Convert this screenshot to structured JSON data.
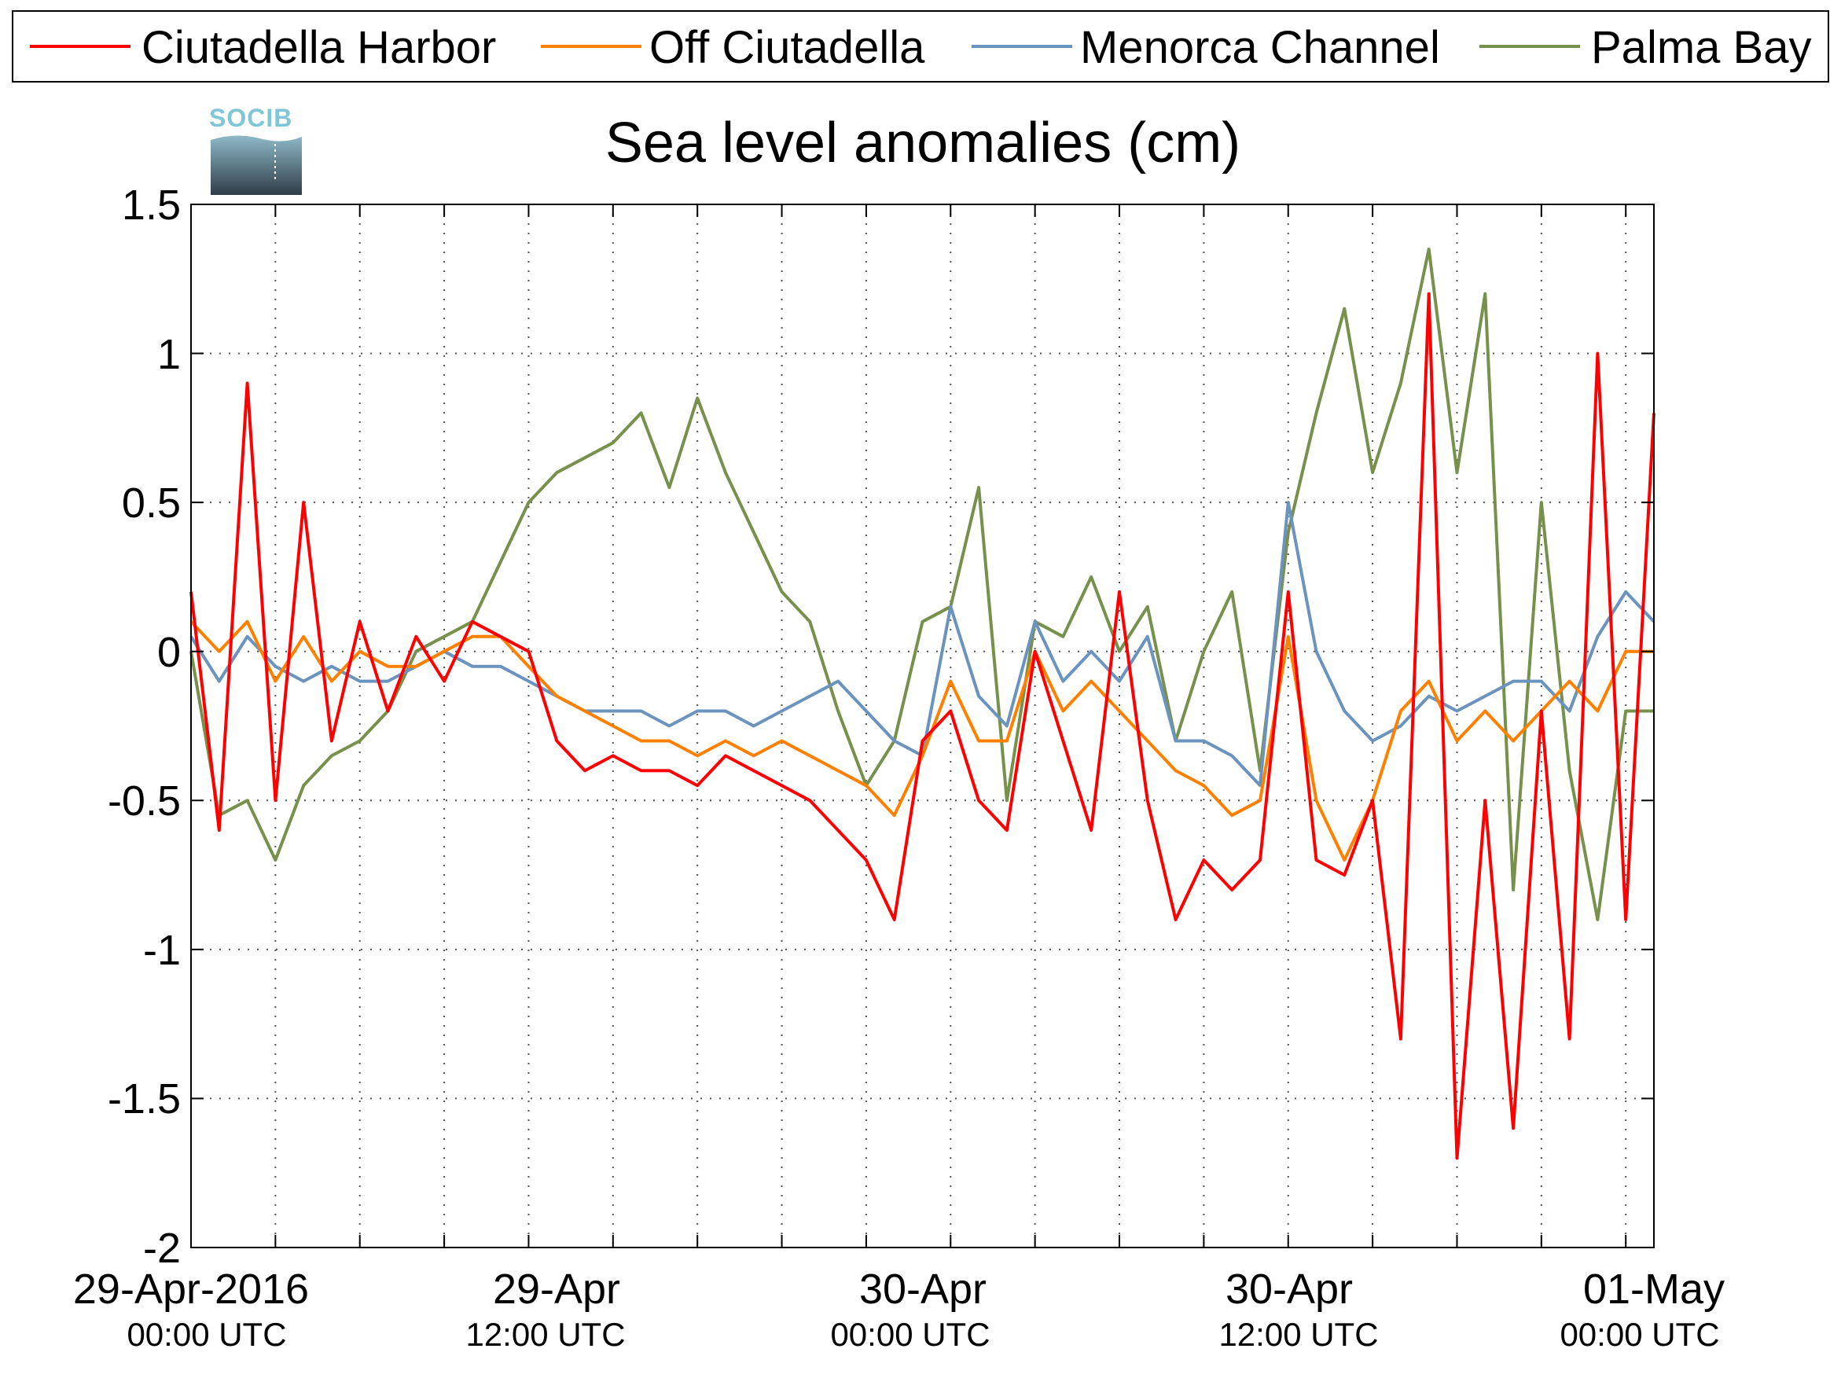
{
  "logo": {
    "text": "SOCIB"
  },
  "legend": {
    "entries": [
      "Ciutadella Harbor",
      "Off Ciutadella",
      "Menorca Channel",
      "Palma Bay"
    ]
  },
  "colors": {
    "Ciutadella Harbor": "#ff0000",
    "Off Ciutadella": "#ff8000",
    "Menorca Channel": "#6a93bd",
    "Palma Bay": "#77904b",
    "grid": "#555555",
    "axis": "#000000"
  },
  "chart_data": {
    "type": "line",
    "title": "Sea level anomalies (cm)",
    "xlabel": "",
    "ylabel": "",
    "xlim": [
      "2016-04-28T21:00",
      "2016-05-01T01:00"
    ],
    "ylim": [
      -2,
      1.5
    ],
    "grid": true,
    "legend_position": "top",
    "y_ticks": [
      "-2",
      "-1.5",
      "-1",
      "-0.5",
      "0",
      "0.5",
      "1",
      "1.5"
    ],
    "x_ticks": [
      {
        "date": "29-Apr-2016",
        "time": "00:00 UTC"
      },
      {
        "date": "29-Apr",
        "time": "12:00 UTC"
      },
      {
        "date": "30-Apr",
        "time": "00:00 UTC"
      },
      {
        "date": "30-Apr",
        "time": "12:00 UTC"
      },
      {
        "date": "01-May",
        "time": "00:00 UTC"
      }
    ],
    "series": [
      {
        "name": "Palma Bay",
        "x": [
          "2016-04-28T21:00",
          "2016-04-28T22:00",
          "2016-04-28T23:00",
          "2016-04-29T00:00",
          "2016-04-29T01:00",
          "2016-04-29T02:00",
          "2016-04-29T03:00",
          "2016-04-29T04:00",
          "2016-04-29T05:00",
          "2016-04-29T06:00",
          "2016-04-29T07:00",
          "2016-04-29T08:00",
          "2016-04-29T09:00",
          "2016-04-29T10:00",
          "2016-04-29T11:00",
          "2016-04-29T12:00",
          "2016-04-29T13:00",
          "2016-04-29T14:00",
          "2016-04-29T15:00",
          "2016-04-29T16:00",
          "2016-04-29T17:00",
          "2016-04-29T18:00",
          "2016-04-29T19:00",
          "2016-04-29T20:00",
          "2016-04-29T21:00",
          "2016-04-29T22:00",
          "2016-04-29T23:00",
          "2016-04-30T00:00",
          "2016-04-30T01:00",
          "2016-04-30T02:00",
          "2016-04-30T03:00",
          "2016-04-30T04:00",
          "2016-04-30T05:00",
          "2016-04-30T06:00",
          "2016-04-30T07:00",
          "2016-04-30T08:00",
          "2016-04-30T09:00",
          "2016-04-30T10:00",
          "2016-04-30T11:00",
          "2016-04-30T12:00",
          "2016-04-30T13:00",
          "2016-04-30T14:00",
          "2016-04-30T15:00",
          "2016-04-30T16:00",
          "2016-04-30T17:00",
          "2016-04-30T18:00",
          "2016-04-30T19:00",
          "2016-04-30T20:00",
          "2016-04-30T21:00",
          "2016-04-30T22:00",
          "2016-04-30T23:00",
          "2016-05-01T00:00",
          "2016-05-01T01:00"
        ],
        "values": [
          0.0,
          -0.55,
          -0.5,
          -0.7,
          -0.45,
          -0.35,
          -0.3,
          -0.2,
          0.0,
          0.05,
          0.1,
          0.3,
          0.5,
          0.6,
          0.65,
          0.7,
          0.8,
          0.55,
          0.85,
          0.6,
          0.4,
          0.2,
          0.1,
          -0.2,
          -0.45,
          -0.3,
          0.1,
          0.15,
          0.55,
          -0.5,
          0.1,
          0.05,
          0.25,
          0.0,
          0.15,
          -0.3,
          0.0,
          0.2,
          -0.4,
          0.4,
          0.8,
          1.15,
          0.6,
          0.9,
          1.35,
          0.6,
          1.2,
          -0.8,
          0.5,
          -0.4,
          -0.9,
          -0.2,
          -0.2
        ]
      },
      {
        "name": "Menorca Channel",
        "x": [
          "2016-04-28T21:00",
          "2016-04-28T22:00",
          "2016-04-28T23:00",
          "2016-04-29T00:00",
          "2016-04-29T01:00",
          "2016-04-29T02:00",
          "2016-04-29T03:00",
          "2016-04-29T04:00",
          "2016-04-29T05:00",
          "2016-04-29T06:00",
          "2016-04-29T07:00",
          "2016-04-29T08:00",
          "2016-04-29T09:00",
          "2016-04-29T10:00",
          "2016-04-29T11:00",
          "2016-04-29T12:00",
          "2016-04-29T13:00",
          "2016-04-29T14:00",
          "2016-04-29T15:00",
          "2016-04-29T16:00",
          "2016-04-29T17:00",
          "2016-04-29T18:00",
          "2016-04-29T19:00",
          "2016-04-29T20:00",
          "2016-04-29T21:00",
          "2016-04-29T22:00",
          "2016-04-29T23:00",
          "2016-04-30T00:00",
          "2016-04-30T01:00",
          "2016-04-30T02:00",
          "2016-04-30T03:00",
          "2016-04-30T04:00",
          "2016-04-30T05:00",
          "2016-04-30T06:00",
          "2016-04-30T07:00",
          "2016-04-30T08:00",
          "2016-04-30T09:00",
          "2016-04-30T10:00",
          "2016-04-30T11:00",
          "2016-04-30T12:00",
          "2016-04-30T13:00",
          "2016-04-30T14:00",
          "2016-04-30T15:00",
          "2016-04-30T16:00",
          "2016-04-30T17:00",
          "2016-04-30T18:00",
          "2016-04-30T19:00",
          "2016-04-30T20:00",
          "2016-04-30T21:00",
          "2016-04-30T22:00",
          "2016-04-30T23:00",
          "2016-05-01T00:00",
          "2016-05-01T01:00"
        ],
        "values": [
          0.05,
          -0.1,
          0.05,
          -0.05,
          -0.1,
          -0.05,
          -0.1,
          -0.1,
          -0.05,
          0.0,
          -0.05,
          -0.05,
          -0.1,
          -0.15,
          -0.2,
          -0.2,
          -0.2,
          -0.25,
          -0.2,
          -0.2,
          -0.25,
          -0.2,
          -0.15,
          -0.1,
          -0.2,
          -0.3,
          -0.35,
          0.15,
          -0.15,
          -0.25,
          0.1,
          -0.1,
          0.0,
          -0.1,
          0.05,
          -0.3,
          -0.3,
          -0.35,
          -0.45,
          0.5,
          0.0,
          -0.2,
          -0.3,
          -0.25,
          -0.15,
          -0.2,
          -0.15,
          -0.1,
          -0.1,
          -0.2,
          0.05,
          0.2,
          0.1
        ]
      },
      {
        "name": "Off Ciutadella",
        "x": [
          "2016-04-28T21:00",
          "2016-04-28T22:00",
          "2016-04-28T23:00",
          "2016-04-29T00:00",
          "2016-04-29T01:00",
          "2016-04-29T02:00",
          "2016-04-29T03:00",
          "2016-04-29T04:00",
          "2016-04-29T05:00",
          "2016-04-29T06:00",
          "2016-04-29T07:00",
          "2016-04-29T08:00",
          "2016-04-29T09:00",
          "2016-04-29T10:00",
          "2016-04-29T11:00",
          "2016-04-29T12:00",
          "2016-04-29T13:00",
          "2016-04-29T14:00",
          "2016-04-29T15:00",
          "2016-04-29T16:00",
          "2016-04-29T17:00",
          "2016-04-29T18:00",
          "2016-04-29T19:00",
          "2016-04-29T20:00",
          "2016-04-29T21:00",
          "2016-04-29T22:00",
          "2016-04-29T23:00",
          "2016-04-30T00:00",
          "2016-04-30T01:00",
          "2016-04-30T02:00",
          "2016-04-30T03:00",
          "2016-04-30T04:00",
          "2016-04-30T05:00",
          "2016-04-30T06:00",
          "2016-04-30T07:00",
          "2016-04-30T08:00",
          "2016-04-30T09:00",
          "2016-04-30T10:00",
          "2016-04-30T11:00",
          "2016-04-30T12:00",
          "2016-04-30T13:00",
          "2016-04-30T14:00",
          "2016-04-30T15:00",
          "2016-04-30T16:00",
          "2016-04-30T17:00",
          "2016-04-30T18:00",
          "2016-04-30T19:00",
          "2016-04-30T20:00",
          "2016-04-30T21:00",
          "2016-04-30T22:00",
          "2016-04-30T23:00",
          "2016-05-01T00:00",
          "2016-05-01T01:00"
        ],
        "values": [
          0.1,
          0.0,
          0.1,
          -0.1,
          0.05,
          -0.1,
          0.0,
          -0.05,
          -0.05,
          0.0,
          0.05,
          0.05,
          -0.05,
          -0.15,
          -0.2,
          -0.25,
          -0.3,
          -0.3,
          -0.35,
          -0.3,
          -0.35,
          -0.3,
          -0.35,
          -0.4,
          -0.45,
          -0.55,
          -0.35,
          -0.1,
          -0.3,
          -0.3,
          0.0,
          -0.2,
          -0.1,
          -0.2,
          -0.3,
          -0.4,
          -0.45,
          -0.55,
          -0.5,
          0.05,
          -0.5,
          -0.7,
          -0.5,
          -0.2,
          -0.1,
          -0.3,
          -0.2,
          -0.3,
          -0.2,
          -0.1,
          -0.2,
          0.0,
          0.0
        ]
      },
      {
        "name": "Ciutadella Harbor",
        "x": [
          "2016-04-28T21:00",
          "2016-04-28T22:00",
          "2016-04-28T23:00",
          "2016-04-29T00:00",
          "2016-04-29T01:00",
          "2016-04-29T02:00",
          "2016-04-29T03:00",
          "2016-04-29T04:00",
          "2016-04-29T05:00",
          "2016-04-29T06:00",
          "2016-04-29T07:00",
          "2016-04-29T08:00",
          "2016-04-29T09:00",
          "2016-04-29T10:00",
          "2016-04-29T11:00",
          "2016-04-29T12:00",
          "2016-04-29T13:00",
          "2016-04-29T14:00",
          "2016-04-29T15:00",
          "2016-04-29T16:00",
          "2016-04-29T17:00",
          "2016-04-29T18:00",
          "2016-04-29T19:00",
          "2016-04-29T20:00",
          "2016-04-29T21:00",
          "2016-04-29T22:00",
          "2016-04-29T23:00",
          "2016-04-30T00:00",
          "2016-04-30T01:00",
          "2016-04-30T02:00",
          "2016-04-30T03:00",
          "2016-04-30T04:00",
          "2016-04-30T05:00",
          "2016-04-30T06:00",
          "2016-04-30T07:00",
          "2016-04-30T08:00",
          "2016-04-30T09:00",
          "2016-04-30T10:00",
          "2016-04-30T11:00",
          "2016-04-30T12:00",
          "2016-04-30T13:00",
          "2016-04-30T14:00",
          "2016-04-30T15:00",
          "2016-04-30T16:00",
          "2016-04-30T17:00",
          "2016-04-30T18:00",
          "2016-04-30T19:00",
          "2016-04-30T20:00",
          "2016-04-30T21:00",
          "2016-04-30T22:00",
          "2016-04-30T23:00",
          "2016-05-01T00:00",
          "2016-05-01T01:00"
        ],
        "values": [
          0.2,
          -0.6,
          0.9,
          -0.5,
          0.5,
          -0.3,
          0.1,
          -0.2,
          0.05,
          -0.1,
          0.1,
          0.05,
          0.0,
          -0.3,
          -0.4,
          -0.35,
          -0.4,
          -0.4,
          -0.45,
          -0.35,
          -0.4,
          -0.45,
          -0.5,
          -0.6,
          -0.7,
          -0.9,
          -0.3,
          -0.2,
          -0.5,
          -0.6,
          0.0,
          -0.3,
          -0.6,
          0.2,
          -0.5,
          -0.9,
          -0.7,
          -0.8,
          -0.7,
          0.2,
          -0.7,
          -0.75,
          -0.5,
          -1.3,
          1.2,
          -1.7,
          -0.5,
          -1.6,
          -0.2,
          -1.3,
          1.0,
          -0.9,
          0.8
        ]
      }
    ]
  }
}
